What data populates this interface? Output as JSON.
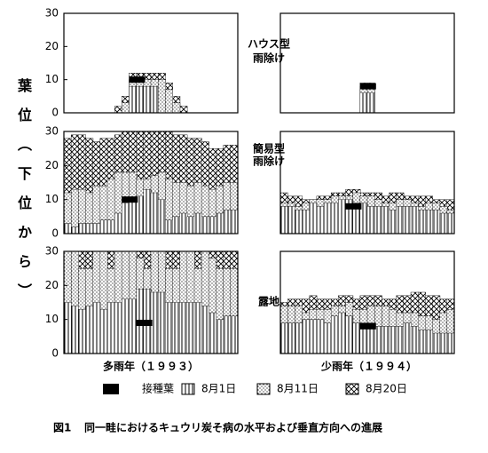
{
  "y_label": "葉位（下位から）",
  "column_labels": [
    "多雨年（１９９３）",
    "少雨年（１９９４）"
  ],
  "row_labels": [
    [
      "ハウス型",
      "雨除け"
    ],
    [
      "簡易型",
      "雨除け"
    ],
    [
      "露地"
    ]
  ],
  "caption": {
    "number": "図1",
    "text": "同一畦におけるキュウリ炭そ病の水平および垂直方向への進展"
  },
  "chart_data": [
    {
      "type": "area",
      "ylim": [
        0,
        30
      ],
      "yticks": [
        0,
        10,
        20,
        30
      ],
      "categories": [
        null,
        null,
        null,
        null,
        null,
        null,
        null,
        null,
        null,
        null,
        null,
        null,
        null,
        null,
        null,
        null,
        null,
        null,
        null,
        null,
        null,
        null,
        null,
        null
      ],
      "inoculated": {
        "name": "接種葉",
        "color": "#000000",
        "index": 10,
        "value": 10
      },
      "series": [
        {
          "name": "8月20日",
          "color": "#000000",
          "pattern": "crosshatch",
          "values": [
            0,
            0,
            0,
            0,
            0,
            0,
            0,
            2,
            5,
            12,
            12,
            12,
            12,
            12,
            9,
            5,
            2,
            0,
            0,
            0,
            0,
            0,
            0,
            0
          ]
        },
        {
          "name": "8月11日",
          "color": "#000000",
          "pattern": "dots",
          "values": [
            0,
            0,
            0,
            0,
            0,
            0,
            0,
            0,
            3,
            10,
            10,
            10,
            10,
            10,
            7,
            3,
            0,
            0,
            0,
            0,
            0,
            0,
            0,
            0
          ]
        },
        {
          "name": "8月1日",
          "color": "#000000",
          "pattern": "vertical-lines",
          "values": [
            0,
            0,
            0,
            0,
            0,
            0,
            0,
            0,
            0,
            8,
            8,
            8,
            8,
            0,
            0,
            0,
            0,
            0,
            0,
            0,
            0,
            0,
            0,
            0
          ]
        }
      ]
    },
    {
      "type": "area",
      "ylim": [
        0,
        30
      ],
      "categories": [
        null,
        null,
        null,
        null,
        null,
        null,
        null,
        null,
        null,
        null,
        null,
        null,
        null,
        null,
        null,
        null,
        null,
        null,
        null,
        null,
        null,
        null,
        null,
        null
      ],
      "inoculated": {
        "color": "#000000",
        "index": 12,
        "value": 8
      },
      "series": [
        {
          "color": "#000000",
          "pattern": "crosshatch",
          "values": [
            0,
            0,
            0,
            0,
            0,
            0,
            0,
            0,
            0,
            0,
            0,
            9,
            9,
            0,
            0,
            0,
            0,
            0,
            0,
            0,
            0,
            0,
            0,
            0
          ]
        },
        {
          "color": "#000000",
          "pattern": "dots",
          "values": [
            0,
            0,
            0,
            0,
            0,
            0,
            0,
            0,
            0,
            0,
            0,
            8,
            8,
            0,
            0,
            0,
            0,
            0,
            0,
            0,
            0,
            0,
            0,
            0
          ]
        },
        {
          "color": "#000000",
          "pattern": "vertical-lines",
          "values": [
            0,
            0,
            0,
            0,
            0,
            0,
            0,
            0,
            0,
            0,
            0,
            6,
            6,
            0,
            0,
            0,
            0,
            0,
            0,
            0,
            0,
            0,
            0,
            0
          ]
        }
      ]
    },
    {
      "type": "area",
      "ylim": [
        0,
        30
      ],
      "yticks": [
        0,
        10,
        20,
        30
      ],
      "categories": [
        null,
        null,
        null,
        null,
        null,
        null,
        null,
        null,
        null,
        null,
        null,
        null,
        null,
        null,
        null,
        null,
        null,
        null,
        null,
        null,
        null,
        null,
        null,
        null
      ],
      "inoculated": {
        "color": "#000000",
        "index": 9,
        "value": 10
      },
      "series": [
        {
          "color": "#000000",
          "pattern": "crosshatch",
          "values": [
            28,
            29,
            29,
            28,
            27,
            28,
            28,
            29,
            30,
            30,
            30,
            30,
            30,
            30,
            30,
            29,
            29,
            28,
            28,
            27,
            25,
            25,
            26,
            26
          ]
        },
        {
          "color": "#000000",
          "pattern": "dots",
          "values": [
            12,
            13,
            13,
            12,
            14,
            14,
            16,
            18,
            18,
            18,
            16,
            16,
            17,
            18,
            16,
            15,
            15,
            14,
            15,
            14,
            13,
            14,
            15,
            15
          ]
        },
        {
          "color": "#000000",
          "pattern": "vertical-lines",
          "values": [
            3,
            2,
            3,
            3,
            3,
            4,
            4,
            6,
            9,
            10,
            11,
            13,
            12,
            10,
            4,
            5,
            6,
            5,
            6,
            5,
            5,
            6,
            7,
            7
          ]
        }
      ]
    },
    {
      "type": "area",
      "ylim": [
        0,
        30
      ],
      "categories": [
        null,
        null,
        null,
        null,
        null,
        null,
        null,
        null,
        null,
        null,
        null,
        null,
        null,
        null,
        null,
        null,
        null,
        null,
        null,
        null,
        null,
        null,
        null,
        null
      ],
      "inoculated": {
        "color": "#000000",
        "index": 10,
        "value": 8
      },
      "series": [
        {
          "color": "#000000",
          "pattern": "crosshatch",
          "values": [
            12,
            11,
            11,
            10,
            10,
            11,
            11,
            12,
            12,
            13,
            13,
            12,
            12,
            12,
            11,
            12,
            12,
            11,
            11,
            11,
            11,
            10,
            10,
            10
          ]
        },
        {
          "color": "#000000",
          "pattern": "dots",
          "values": [
            9,
            9,
            8,
            9,
            10,
            10,
            10,
            11,
            11,
            11,
            12,
            11,
            11,
            10,
            9,
            9,
            10,
            10,
            9,
            8,
            9,
            9,
            8,
            7
          ]
        },
        {
          "color": "#000000",
          "pattern": "vertical-lines",
          "values": [
            8,
            8,
            7,
            7,
            9,
            8,
            9,
            9,
            10,
            10,
            9,
            9,
            8,
            8,
            8,
            7,
            8,
            8,
            8,
            7,
            7,
            7,
            6,
            6
          ]
        }
      ]
    },
    {
      "type": "area",
      "ylim": [
        0,
        30
      ],
      "yticks": [
        0,
        10,
        20,
        30
      ],
      "categories": [
        null,
        null,
        null,
        null,
        null,
        null,
        null,
        null,
        null,
        null,
        null,
        null,
        null,
        null,
        null,
        null,
        null,
        null,
        null,
        null,
        null,
        null,
        null,
        null
      ],
      "inoculated": {
        "color": "#000000",
        "index": 11,
        "value": 9
      },
      "series": [
        {
          "color": "#000000",
          "pattern": "crosshatch",
          "values": [
            30,
            30,
            30,
            30,
            30,
            30,
            30,
            30,
            30,
            30,
            30,
            30,
            30,
            30,
            30,
            30,
            30,
            30,
            30,
            30,
            30,
            30,
            30,
            30
          ]
        },
        {
          "color": "#000000",
          "pattern": "dots",
          "values": [
            30,
            30,
            25,
            25,
            30,
            30,
            25,
            30,
            30,
            30,
            28,
            25,
            30,
            30,
            25,
            25,
            30,
            30,
            25,
            30,
            28,
            25,
            25,
            25
          ]
        },
        {
          "color": "#000000",
          "pattern": "vertical-lines",
          "values": [
            15,
            14,
            13,
            14,
            15,
            13,
            15,
            15,
            16,
            16,
            19,
            19,
            18,
            18,
            15,
            15,
            15,
            15,
            15,
            14,
            12,
            10,
            11,
            11
          ]
        }
      ]
    },
    {
      "type": "area",
      "ylim": [
        0,
        30
      ],
      "categories": [
        null,
        null,
        null,
        null,
        null,
        null,
        null,
        null,
        null,
        null,
        null,
        null,
        null,
        null,
        null,
        null,
        null,
        null,
        null,
        null,
        null,
        null,
        null,
        null
      ],
      "inoculated": {
        "color": "#000000",
        "index": 12,
        "value": 8
      },
      "series": [
        {
          "color": "#000000",
          "pattern": "crosshatch",
          "values": [
            15,
            16,
            16,
            16,
            17,
            16,
            16,
            16,
            17,
            17,
            16,
            17,
            17,
            17,
            16,
            16,
            17,
            17,
            18,
            18,
            17,
            17,
            16,
            16
          ]
        },
        {
          "color": "#000000",
          "pattern": "dots",
          "values": [
            14,
            14,
            14,
            12,
            13,
            13,
            13,
            14,
            14,
            15,
            13,
            13,
            14,
            14,
            14,
            13,
            12,
            12,
            12,
            11,
            11,
            10,
            12,
            13
          ]
        },
        {
          "color": "#000000",
          "pattern": "vertical-lines",
          "values": [
            9,
            9,
            9,
            10,
            10,
            10,
            9,
            11,
            12,
            11,
            9,
            9,
            9,
            8,
            8,
            8,
            8,
            9,
            8,
            7,
            7,
            6,
            6,
            6
          ]
        }
      ]
    }
  ]
}
